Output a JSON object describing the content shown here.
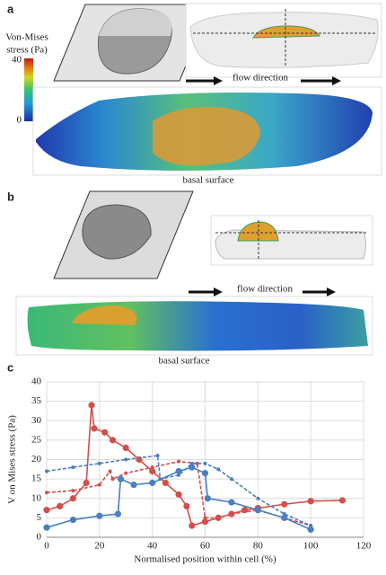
{
  "panels": {
    "a": {
      "label": "a",
      "colorbar": {
        "title_lines": [
          "Von-Mises",
          "stress (Pa)"
        ],
        "max": 40,
        "min": 0
      },
      "flow": "flow direction",
      "basal": "basal surface"
    },
    "b": {
      "label": "b",
      "flow": "flow direction",
      "basal": "basal surface"
    },
    "c": {
      "label": "c"
    }
  },
  "chart_data": {
    "type": "line",
    "xlabel": "Normalised position within cell (%)",
    "ylabel": "V on Mises stress (Pa)",
    "xlim": [
      0,
      120
    ],
    "xticks": [
      0,
      20,
      40,
      60,
      80,
      100,
      120
    ],
    "ylim": [
      0,
      40
    ],
    "yticks": [
      0,
      5,
      10,
      15,
      20,
      25,
      30,
      35,
      40
    ],
    "grid": true,
    "series": [
      {
        "color": "#d2504b",
        "style": "solid",
        "x": [
          0,
          5,
          10,
          15,
          17,
          18,
          22,
          25,
          30,
          35,
          40,
          45,
          50,
          53,
          55,
          60,
          65,
          70,
          75,
          80,
          90,
          100,
          112
        ],
        "values": [
          7,
          8,
          10,
          14,
          34,
          28,
          27,
          25,
          23,
          20,
          17,
          14,
          11,
          8,
          3,
          4,
          5,
          6,
          7,
          7.5,
          8.5,
          9.3,
          9.5
        ]
      },
      {
        "color": "#d2504b",
        "style": "dashed",
        "x": [
          0,
          10,
          20,
          24,
          25,
          30,
          40,
          50,
          57,
          60,
          65,
          70,
          80,
          90,
          100
        ],
        "values": [
          11.5,
          12,
          13.5,
          17,
          15,
          16.5,
          18,
          19.5,
          19,
          5,
          5,
          6,
          7,
          5,
          3
        ]
      },
      {
        "color": "#4a7fc1",
        "style": "solid",
        "x": [
          0,
          10,
          20,
          27,
          28,
          33,
          40,
          50,
          55,
          60,
          61,
          70,
          80,
          90,
          100
        ],
        "values": [
          2.5,
          4.5,
          5.5,
          6,
          15,
          13.5,
          14,
          17,
          18,
          16.5,
          10,
          9,
          7,
          5,
          2
        ]
      },
      {
        "color": "#4a7fc1",
        "style": "dashed",
        "x": [
          0,
          10,
          20,
          30,
          42,
          43,
          50,
          55,
          60,
          65,
          70,
          80,
          90,
          100
        ],
        "values": [
          17,
          18,
          19,
          20,
          21,
          15,
          16,
          19,
          19,
          17.5,
          15,
          10,
          6,
          3
        ]
      }
    ]
  }
}
